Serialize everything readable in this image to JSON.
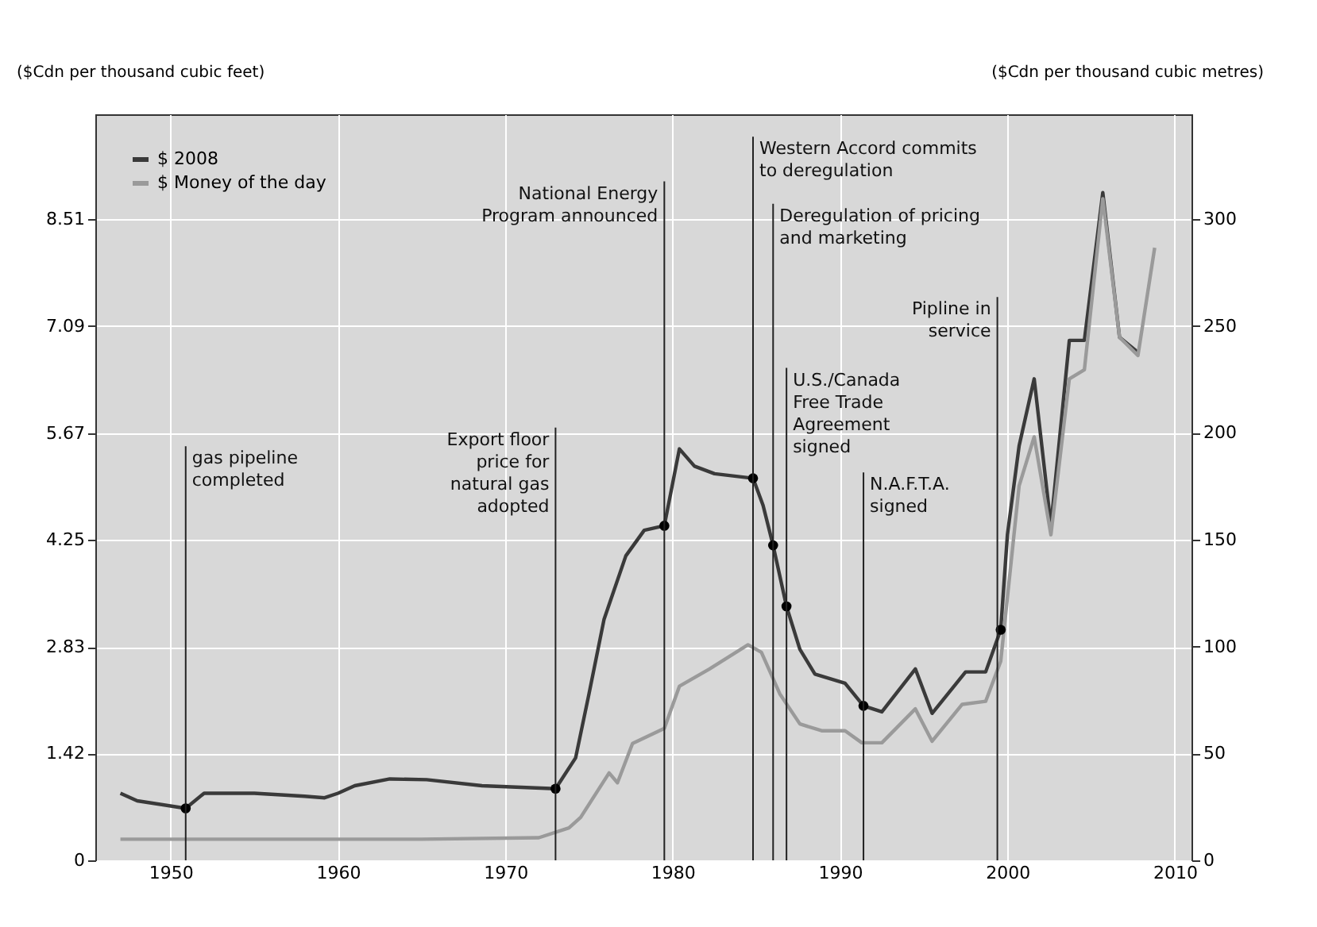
{
  "chart_data": {
    "type": "line",
    "ylabel": "($Cdn per thousand cubic feet)",
    "y2label": "($Cdn per thousand cubic metres)",
    "xlim": [
      1945.5,
      2011
    ],
    "xticks": [
      1950,
      1960,
      1970,
      1980,
      1990,
      2000,
      2010
    ],
    "ylim": [
      0,
      9.9
    ],
    "yticks": [
      0,
      1.42,
      2.83,
      4.25,
      5.67,
      7.09,
      8.51
    ],
    "y2lim": [
      0,
      349
    ],
    "y2ticks": [
      0,
      50,
      100,
      150,
      200,
      250,
      300
    ],
    "grid": true,
    "legend": "top left",
    "marker": "none",
    "line_style": "solid",
    "series": [
      {
        "name": "$ 2008",
        "color": "#3a3a3a",
        "x": [
          1947,
          1948,
          1950.9,
          1952,
          1955,
          1958,
          1959.2,
          1960,
          1961,
          1963.1,
          1965.3,
          1968.6,
          1973,
          1974.2,
          1975,
          1975.9,
          1977.2,
          1978.3,
          1979.5,
          1980.4,
          1981.3,
          1982.5,
          1984.8,
          1985.4,
          1986,
          1986.8,
          1987.6,
          1988.5,
          1990.3,
          1991.4,
          1992.5,
          1994.5,
          1995.5,
          1997.5,
          1998.7,
          1999.6,
          2000,
          2000.7,
          2001.6,
          2002.6,
          2003.7,
          2004.6,
          2005.7,
          2006.7,
          2007.8
        ],
        "values": [
          0.89,
          0.79,
          0.69,
          0.89,
          0.89,
          0.85,
          0.83,
          0.89,
          0.99,
          1.08,
          1.07,
          0.99,
          0.95,
          1.36,
          2.21,
          3.2,
          4.04,
          4.38,
          4.44,
          5.46,
          5.23,
          5.13,
          5.07,
          4.71,
          4.18,
          3.37,
          2.8,
          2.47,
          2.35,
          2.05,
          1.97,
          2.54,
          1.95,
          2.5,
          2.5,
          3.06,
          4.32,
          5.5,
          6.39,
          4.44,
          6.9,
          6.9,
          8.86,
          6.94,
          6.74
        ]
      },
      {
        "name": "$ Money of the day",
        "color": "#9a9a9a",
        "x": [
          1947,
          1955,
          1965,
          1972,
          1973.8,
          1974.5,
          1976.2,
          1976.7,
          1977.6,
          1979.5,
          1980.4,
          1982.2,
          1984.5,
          1985.3,
          1986.4,
          1987.6,
          1988.9,
          1990.3,
          1991.3,
          1992.5,
          1994.5,
          1995.5,
          1997.3,
          1998.7,
          1999.6,
          2000.7,
          2001.6,
          2002.6,
          2003.7,
          2004.6,
          2005.7,
          2006.7,
          2007.8,
          2008.8
        ],
        "values": [
          0.28,
          0.28,
          0.28,
          0.3,
          0.43,
          0.57,
          1.16,
          1.03,
          1.55,
          1.75,
          2.31,
          2.54,
          2.86,
          2.76,
          2.21,
          1.81,
          1.72,
          1.72,
          1.56,
          1.56,
          2.01,
          1.58,
          2.07,
          2.11,
          2.64,
          4.97,
          5.62,
          4.32,
          6.39,
          6.51,
          8.78,
          6.94,
          6.7,
          8.13
        ]
      },
      {
        "type": "scatter",
        "marker": "circle",
        "color": "#000000",
        "x": [
          1950.9,
          1973,
          1979.5,
          1984.8,
          1986,
          1986.8,
          1991.4,
          1999.6
        ],
        "values": [
          0.69,
          0.95,
          4.44,
          5.07,
          4.18,
          3.37,
          2.05,
          3.06
        ]
      }
    ],
    "ref_lines": [
      {
        "axis": "x",
        "value": 1950.9,
        "label": "gas pipeline completed"
      },
      {
        "axis": "x",
        "value": 1973,
        "label": "Export floor price for natural gas adopted"
      },
      {
        "axis": "x",
        "value": 1979.5,
        "label": "National Energy Program announced"
      },
      {
        "axis": "x",
        "value": 1984.8,
        "label": "Western Accord commits to deregulation"
      },
      {
        "axis": "x",
        "value": 1986,
        "label": "Deregulation of pricing and marketing"
      },
      {
        "axis": "x",
        "value": 1986.8,
        "label": "U.S./Canada Free Trade Agreement signed"
      },
      {
        "axis": "x",
        "value": 1991.4,
        "label": "N.A.F.T.A. signed"
      },
      {
        "axis": "x",
        "value": 1999.4,
        "label": "Pipline in service"
      }
    ]
  }
}
